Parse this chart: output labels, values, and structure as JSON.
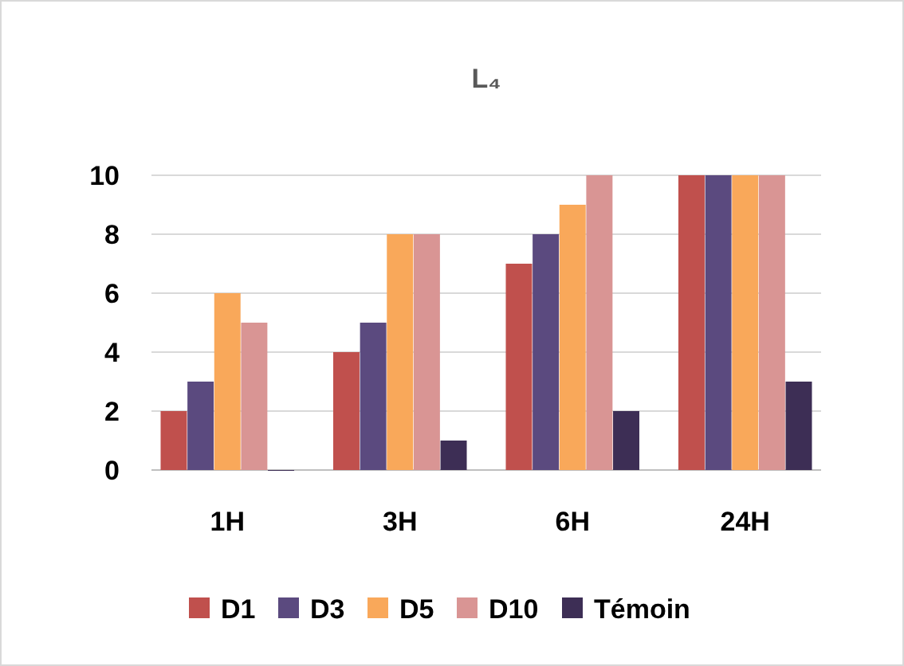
{
  "chart_data": {
    "type": "bar",
    "title": "L₄",
    "categories": [
      "1H",
      "3H",
      "6H",
      "24H"
    ],
    "series": [
      {
        "name": "D1",
        "color": "#c0504d",
        "values": [
          2,
          4,
          7,
          10
        ]
      },
      {
        "name": "D3",
        "color": "#5b4a7f",
        "values": [
          3,
          5,
          8,
          10
        ]
      },
      {
        "name": "D5",
        "color": "#f9a85a",
        "values": [
          6,
          8,
          9,
          10
        ]
      },
      {
        "name": "D10",
        "color": "#d99594",
        "values": [
          5,
          8,
          10,
          10
        ]
      },
      {
        "name": "Témoin",
        "color": "#3d2e55",
        "values": [
          0,
          1,
          2,
          3
        ]
      }
    ],
    "ylim": [
      0,
      10
    ],
    "yticks": [
      0,
      2,
      4,
      6,
      8,
      10
    ],
    "grid": "y",
    "legend": "bottom"
  }
}
